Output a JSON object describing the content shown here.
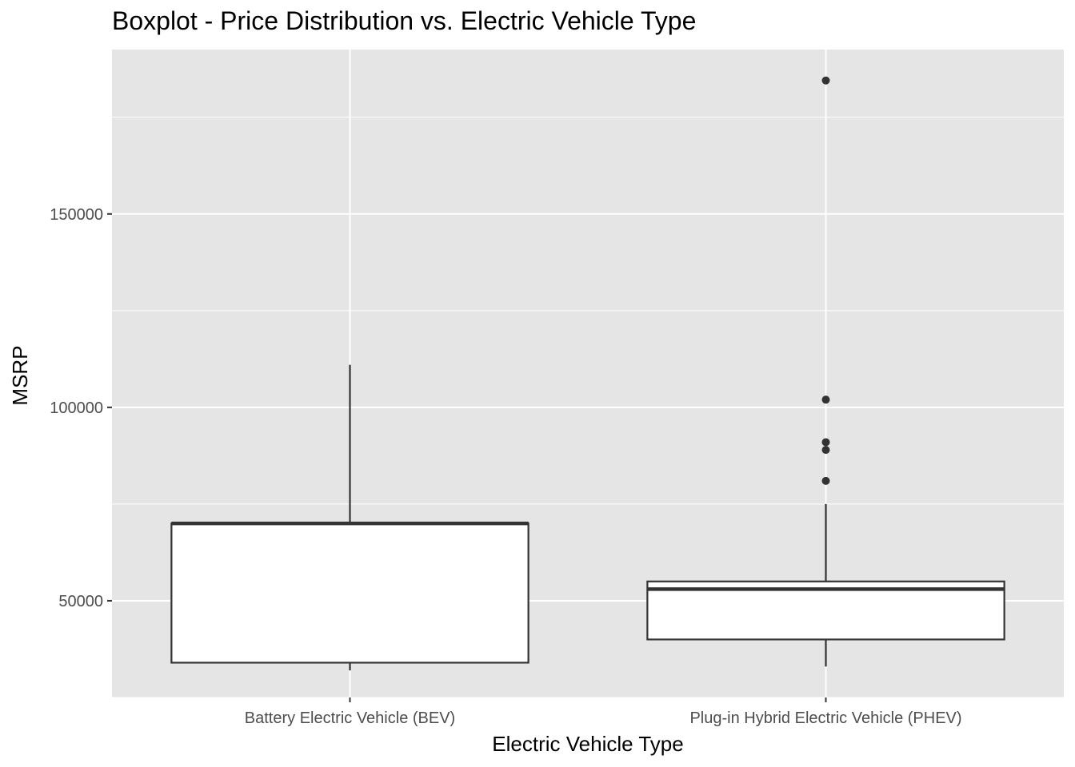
{
  "chart_data": {
    "type": "boxplot",
    "title": "Boxplot - Price Distribution vs. Electric Vehicle Type",
    "xlabel": "Electric Vehicle Type",
    "ylabel": "MSRP",
    "categories": [
      "Battery Electric Vehicle (BEV)",
      "Plug-in Hybrid Electric Vehicle (PHEV)"
    ],
    "boxes": [
      {
        "category": "Battery Electric Vehicle (BEV)",
        "whisker_low": 32000,
        "q1": 34000,
        "median": 70000,
        "q3": 70000,
        "whisker_high": 111000,
        "outliers": []
      },
      {
        "category": "Plug-in Hybrid Electric Vehicle (PHEV)",
        "whisker_low": 33000,
        "q1": 40000,
        "median": 53000,
        "q3": 55000,
        "whisker_high": 75000,
        "outliers": [
          81000,
          89000,
          91000,
          102000,
          184500
        ]
      }
    ],
    "y_ticks": [
      50000,
      100000,
      150000
    ],
    "y_tick_labels": [
      "50000",
      "100000",
      "150000"
    ],
    "ylim": [
      25000,
      192500
    ],
    "grid": true,
    "panel_background": "#e5e5e5",
    "grid_color": "#ffffff",
    "box_fill": "#ffffff",
    "box_stroke": "#333333",
    "outlier_color": "#333333"
  }
}
